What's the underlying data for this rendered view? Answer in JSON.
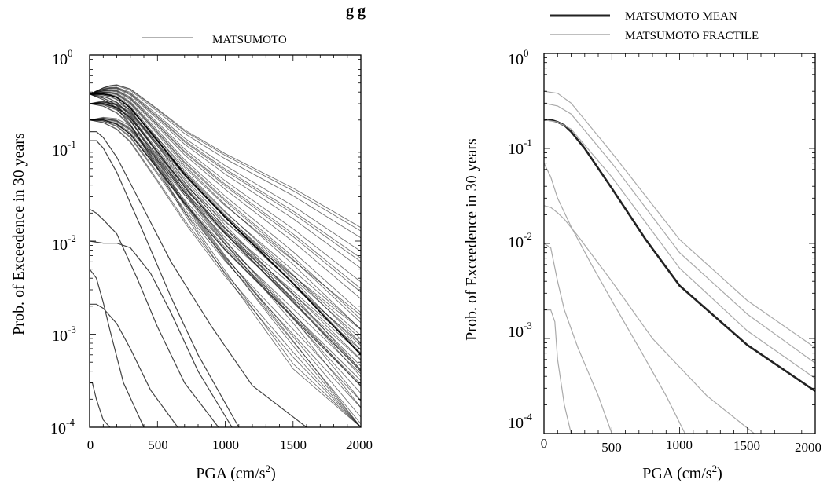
{
  "header_fragment": "g  g",
  "chart_data": [
    {
      "type": "line",
      "title": "",
      "xlabel": "PGA (cm/s",
      "xlabel_sup": "2",
      "ylabel": "Prob. of Exceedence in 30 years",
      "xlim": [
        0,
        2000
      ],
      "ylim": [
        0.0001,
        1
      ],
      "yscale": "log",
      "grid": false,
      "legend_position": "top-center",
      "x_ticks": [
        "0",
        "500",
        "1000",
        "1500",
        "2000"
      ],
      "y_ticks": [
        {
          "base": "10",
          "exp": "0"
        },
        {
          "base": "10",
          "exp": "-1"
        },
        {
          "base": "10",
          "exp": "-2"
        },
        {
          "base": "10",
          "exp": "-3"
        },
        {
          "base": "10",
          "exp": "-4"
        }
      ],
      "legend": [
        {
          "name": "MATSUMOTO",
          "color": "#999999"
        }
      ],
      "series": [
        {
          "name": "MATSUMOTO",
          "color": "#000000",
          "note_count": "many curves",
          "x": [
            0,
            100,
            150,
            200,
            300,
            500,
            700,
            1000,
            1500,
            2000
          ],
          "values": [
            0.38,
            0.38,
            0.37,
            0.35,
            0.27,
            0.12,
            0.052,
            0.018,
            0.0035,
            0.0006
          ]
        },
        {
          "x": [
            0,
            100,
            200,
            300,
            500,
            700,
            1000,
            1500,
            2000
          ],
          "values": [
            0.3,
            0.3,
            0.27,
            0.21,
            0.09,
            0.038,
            0.012,
            0.0022,
            0.0004
          ]
        },
        {
          "x": [
            0,
            100,
            200,
            300,
            500,
            700,
            1000,
            1500,
            2000
          ],
          "values": [
            0.2,
            0.2,
            0.18,
            0.14,
            0.06,
            0.025,
            0.008,
            0.0015,
            0.00028
          ]
        },
        {
          "x": [
            0,
            50,
            100,
            200,
            400,
            600,
            900,
            1200,
            1600
          ],
          "values": [
            0.15,
            0.15,
            0.13,
            0.08,
            0.022,
            0.006,
            0.0012,
            0.00028,
            0.0001
          ]
        },
        {
          "x": [
            0,
            50,
            100,
            200,
            400,
            600,
            800,
            1100
          ],
          "values": [
            0.12,
            0.12,
            0.1,
            0.055,
            0.012,
            0.0025,
            0.0006,
            0.0001
          ]
        },
        {
          "x": [
            0,
            50,
            100,
            200,
            350,
            500,
            700,
            950
          ],
          "values": [
            0.022,
            0.02,
            0.017,
            0.012,
            0.004,
            0.0012,
            0.0003,
            0.0001
          ]
        },
        {
          "x": [
            0,
            100,
            200,
            300,
            450,
            600,
            800,
            1050
          ],
          "values": [
            0.01,
            0.0095,
            0.0095,
            0.0085,
            0.0045,
            0.0017,
            0.0004,
            0.0001
          ]
        },
        {
          "x": [
            0,
            50,
            100,
            200,
            300,
            450,
            650
          ],
          "values": [
            0.0021,
            0.0021,
            0.0019,
            0.0013,
            0.0007,
            0.00025,
            0.0001
          ]
        },
        {
          "x": [
            0,
            20,
            50,
            100,
            150
          ],
          "values": [
            0.0003,
            0.0003,
            0.0002,
            0.00012,
            0.0001
          ]
        },
        {
          "x": [
            0,
            50,
            100,
            150,
            250,
            400
          ],
          "values": [
            0.005,
            0.004,
            0.0022,
            0.0011,
            0.0003,
            0.0001
          ]
        }
      ]
    },
    {
      "type": "line",
      "title": "",
      "xlabel": "PGA (cm/s",
      "xlabel_sup": "2",
      "ylabel": "Prob. of Exceedence in 30 years",
      "xlim": [
        0,
        2000
      ],
      "ylim": [
        0.0001,
        1
      ],
      "yscale": "log",
      "grid": false,
      "legend_position": "top-right",
      "x_ticks": [
        "0",
        "500",
        "1000",
        "1500",
        "2000"
      ],
      "y_ticks": [
        {
          "base": "10",
          "exp": "0"
        },
        {
          "base": "10",
          "exp": "-1"
        },
        {
          "base": "10",
          "exp": "-2"
        },
        {
          "base": "10",
          "exp": "-3"
        },
        {
          "base": "10",
          "exp": "-4"
        }
      ],
      "legend": [
        {
          "name": "MATSUMOTO MEAN",
          "color": "#222222"
        },
        {
          "name": "MATSUMOTO FRACTILE",
          "color": "#aaaaaa"
        }
      ],
      "series": [
        {
          "name": "MATSUMOTO MEAN",
          "color": "#222222",
          "x": [
            0,
            50,
            100,
            150,
            200,
            300,
            500,
            750,
            1000,
            1500,
            2000
          ],
          "values": [
            0.2,
            0.2,
            0.19,
            0.175,
            0.15,
            0.1,
            0.038,
            0.011,
            0.0036,
            0.00085,
            0.00028
          ]
        },
        {
          "name": "MATSUMOTO FRACTILE",
          "color": "#aaaaaa",
          "x": [
            0,
            100,
            200,
            500,
            1000,
            1500,
            2000
          ],
          "values": [
            0.4,
            0.38,
            0.3,
            0.09,
            0.011,
            0.0025,
            0.0008
          ]
        },
        {
          "x": [
            0,
            100,
            200,
            500,
            1000,
            1500,
            2000
          ],
          "values": [
            0.3,
            0.28,
            0.23,
            0.07,
            0.008,
            0.0018,
            0.00055
          ]
        },
        {
          "x": [
            0,
            100,
            200,
            500,
            1000,
            1500,
            2000
          ],
          "values": [
            0.2,
            0.19,
            0.16,
            0.05,
            0.0055,
            0.0012,
            0.00038
          ]
        },
        {
          "x": [
            0,
            50,
            100,
            200,
            350,
            500,
            700,
            900,
            1040
          ],
          "values": [
            0.07,
            0.05,
            0.03,
            0.015,
            0.006,
            0.0025,
            0.0008,
            0.00025,
            0.0001
          ]
        },
        {
          "x": [
            0,
            50,
            100,
            150,
            250,
            500,
            800,
            1200,
            1550
          ],
          "values": [
            0.025,
            0.024,
            0.021,
            0.018,
            0.012,
            0.004,
            0.001,
            0.00025,
            0.0001
          ]
        },
        {
          "x": [
            0,
            50,
            100,
            150,
            250,
            400,
            500
          ],
          "values": [
            0.01,
            0.009,
            0.004,
            0.002,
            0.0008,
            0.00025,
            0.0001
          ]
        },
        {
          "x": [
            0,
            50,
            80,
            100,
            150,
            200
          ],
          "values": [
            0.002,
            0.002,
            0.0015,
            0.0006,
            0.0002,
            0.0001
          ]
        }
      ]
    }
  ]
}
